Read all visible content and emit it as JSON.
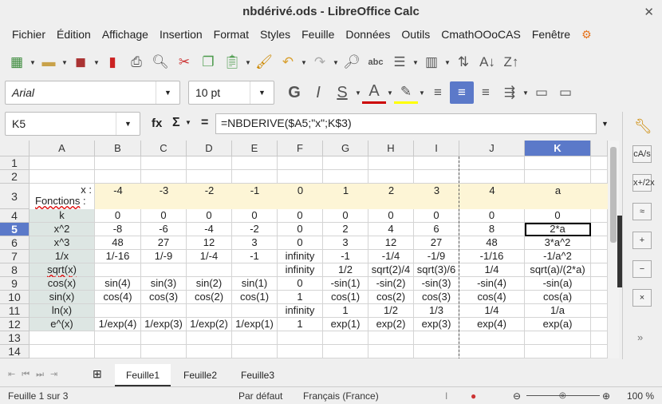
{
  "window": {
    "title": "nbdérivé.ods - LibreOffice Calc",
    "close": "✕"
  },
  "menu": [
    "Fichier",
    "Édition",
    "Affichage",
    "Insertion",
    "Format",
    "Styles",
    "Feuille",
    "Données",
    "Outils",
    "CmathOOoCAS",
    "Fenêtre"
  ],
  "toolbar": {
    "font_name": "Arial",
    "font_size": "10 pt"
  },
  "formula_bar": {
    "cell_ref": "K5",
    "fx": "fx",
    "sigma": "Σ",
    "equals": "=",
    "formula": "=NBDERIVE($A5;\"x\";K$3)"
  },
  "columns": [
    "A",
    "B",
    "C",
    "D",
    "E",
    "F",
    "G",
    "H",
    "I",
    "J",
    "K"
  ],
  "selected_column": "K",
  "selected_row": "5",
  "active_cell": "K5",
  "rows": [
    {
      "n": "1",
      "cells": []
    },
    {
      "n": "2",
      "cells": []
    },
    {
      "n": "3",
      "cells": [
        "x :\nFonctions :",
        "-4",
        "-3",
        "-2",
        "-1",
        "0",
        "1",
        "2",
        "3",
        "4",
        "a"
      ]
    },
    {
      "n": "4",
      "cells": [
        "k",
        "0",
        "0",
        "0",
        "0",
        "0",
        "0",
        "0",
        "0",
        "0",
        "0"
      ]
    },
    {
      "n": "5",
      "cells": [
        "x^2",
        "-8",
        "-6",
        "-4",
        "-2",
        "0",
        "2",
        "4",
        "6",
        "8",
        "2*a"
      ]
    },
    {
      "n": "6",
      "cells": [
        "x^3",
        "48",
        "27",
        "12",
        "3",
        "0",
        "3",
        "12",
        "27",
        "48",
        "3*a^2"
      ]
    },
    {
      "n": "7",
      "cells": [
        "1/x",
        "1/-16",
        "1/-9",
        "1/-4",
        "-1",
        "infinity",
        "-1",
        "-1/4",
        "-1/9",
        "-1/16",
        "-1/a^2"
      ]
    },
    {
      "n": "8",
      "cells": [
        "sqrt(x)",
        "",
        "",
        "",
        "",
        "infinity",
        "1/2",
        "sqrt(2)/4",
        "sqrt(3)/6",
        "1/4",
        "sqrt(a)/(2*a)"
      ]
    },
    {
      "n": "9",
      "cells": [
        "cos(x)",
        "sin(4)",
        "sin(3)",
        "sin(2)",
        "sin(1)",
        "0",
        "-sin(1)",
        "-sin(2)",
        "-sin(3)",
        "-sin(4)",
        "-sin(a)"
      ]
    },
    {
      "n": "10",
      "cells": [
        "sin(x)",
        "cos(4)",
        "cos(3)",
        "cos(2)",
        "cos(1)",
        "1",
        "cos(1)",
        "cos(2)",
        "cos(3)",
        "cos(4)",
        "cos(a)"
      ]
    },
    {
      "n": "11",
      "cells": [
        "ln(x)",
        "",
        "",
        "",
        "",
        "infinity",
        "1",
        "1/2",
        "1/3",
        "1/4",
        "1/a"
      ]
    },
    {
      "n": "12",
      "cells": [
        "e^(x)",
        "1/exp(4)",
        "1/exp(3)",
        "1/exp(2)",
        "1/exp(1)",
        "1",
        "exp(1)",
        "exp(2)",
        "exp(3)",
        "exp(4)",
        "exp(a)"
      ]
    },
    {
      "n": "13",
      "cells": []
    },
    {
      "n": "14",
      "cells": []
    }
  ],
  "colors": {
    "header_yellow": "#fdf5d6",
    "label_bg": "#dde6e3",
    "selection": "#5b79c9"
  },
  "sheet_tabs": [
    "Feuille1",
    "Feuille2",
    "Feuille3"
  ],
  "active_tab": "Feuille1",
  "sidebar_buttons": [
    "cA/s",
    "x+/2x",
    "≈",
    "+",
    "−",
    "×"
  ],
  "status": {
    "sheet": "Feuille 1 sur 3",
    "style": "Par défaut",
    "language": "Français (France)",
    "zoom": "100 %",
    "zoom_level": 100
  }
}
